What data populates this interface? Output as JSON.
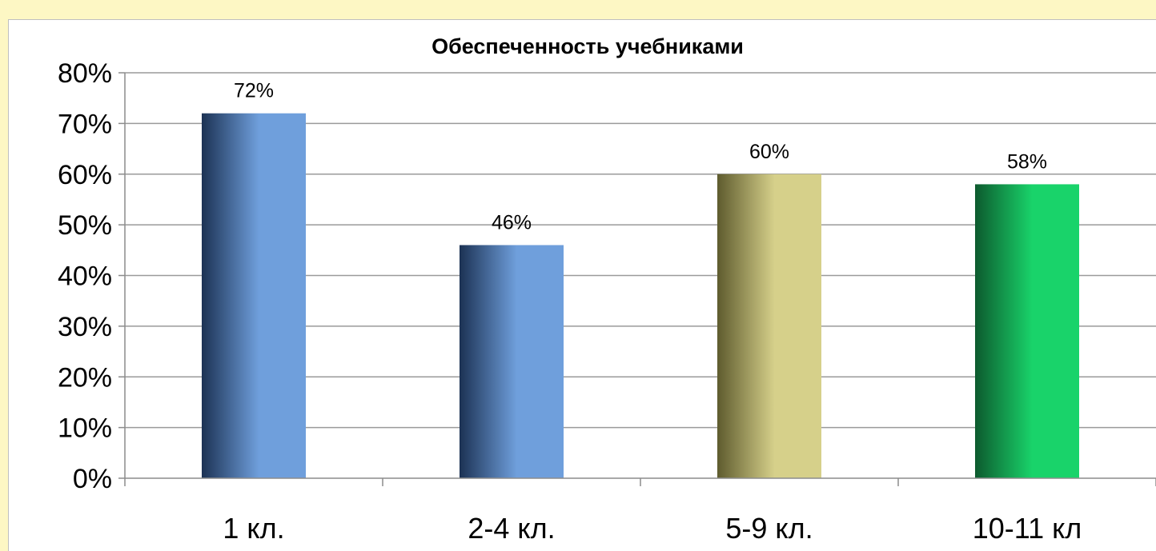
{
  "chart_data": {
    "type": "bar",
    "title": "Обеспеченность учебниками",
    "categories": [
      "1 кл.",
      "2-4 кл.",
      "5-9 кл.",
      "10-11 кл"
    ],
    "values": [
      72,
      46,
      60,
      58
    ],
    "data_labels": [
      "72%",
      "46%",
      "60%",
      "58%"
    ],
    "y_ticks": [
      "0%",
      "10%",
      "20%",
      "30%",
      "40%",
      "50%",
      "60%",
      "70%",
      "80%"
    ],
    "ylim": [
      0,
      80
    ],
    "grid": true,
    "legend": "none",
    "bar_colors": [
      {
        "dark": "#1c3254",
        "light": "#6f9fdc"
      },
      {
        "dark": "#1c3254",
        "light": "#6f9fdc"
      },
      {
        "dark": "#5e5b2e",
        "light": "#d6d08a"
      },
      {
        "dark": "#0d5a2e",
        "light": "#19d36a"
      }
    ],
    "background": "#fdf7c4"
  }
}
